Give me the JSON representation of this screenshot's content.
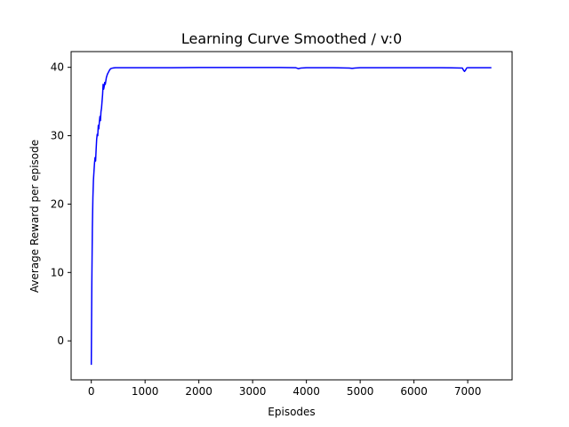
{
  "chart_data": {
    "type": "line",
    "title": "Learning Curve Smoothed / v:0",
    "xlabel": "Episodes",
    "ylabel": "Average Reward per episode",
    "xlim": [
      -375,
      7825
    ],
    "ylim": [
      -5.7,
      42.3
    ],
    "xticks": [
      0,
      1000,
      2000,
      3000,
      4000,
      5000,
      6000,
      7000
    ],
    "yticks": [
      0,
      10,
      20,
      30,
      40
    ],
    "grid": false,
    "series": [
      {
        "color": "#0000ff",
        "x": [
          0,
          10,
          20,
          30,
          40,
          50,
          60,
          70,
          80,
          90,
          100,
          110,
          120,
          130,
          140,
          150,
          160,
          170,
          180,
          190,
          200,
          210,
          220,
          230,
          240,
          250,
          260,
          270,
          280,
          300,
          320,
          340,
          360,
          380,
          400,
          450,
          500,
          600,
          800,
          1000,
          1500,
          2000,
          2500,
          3000,
          3500,
          3800,
          3850,
          3900,
          4000,
          4500,
          4800,
          4850,
          4900,
          5000,
          5500,
          6000,
          6500,
          6900,
          6920,
          6940,
          6960,
          6980,
          7000,
          7200,
          7440
        ],
        "y": [
          -3.5,
          8.5,
          16.5,
          21.0,
          23.5,
          24.8,
          26.0,
          26.8,
          26.3,
          28.0,
          29.5,
          30.2,
          30.0,
          31.5,
          31.0,
          32.0,
          32.8,
          32.2,
          33.5,
          34.0,
          35.0,
          36.0,
          37.5,
          36.8,
          37.2,
          37.8,
          37.5,
          38.0,
          38.5,
          39.0,
          39.3,
          39.6,
          39.8,
          39.85,
          39.9,
          39.95,
          39.95,
          39.95,
          39.95,
          39.95,
          39.95,
          39.97,
          39.97,
          39.97,
          39.97,
          39.95,
          39.8,
          39.9,
          39.95,
          39.95,
          39.9,
          39.85,
          39.9,
          39.95,
          39.95,
          39.95,
          39.95,
          39.9,
          39.6,
          39.4,
          39.6,
          39.9,
          39.95,
          39.95,
          39.95
        ]
      }
    ]
  }
}
